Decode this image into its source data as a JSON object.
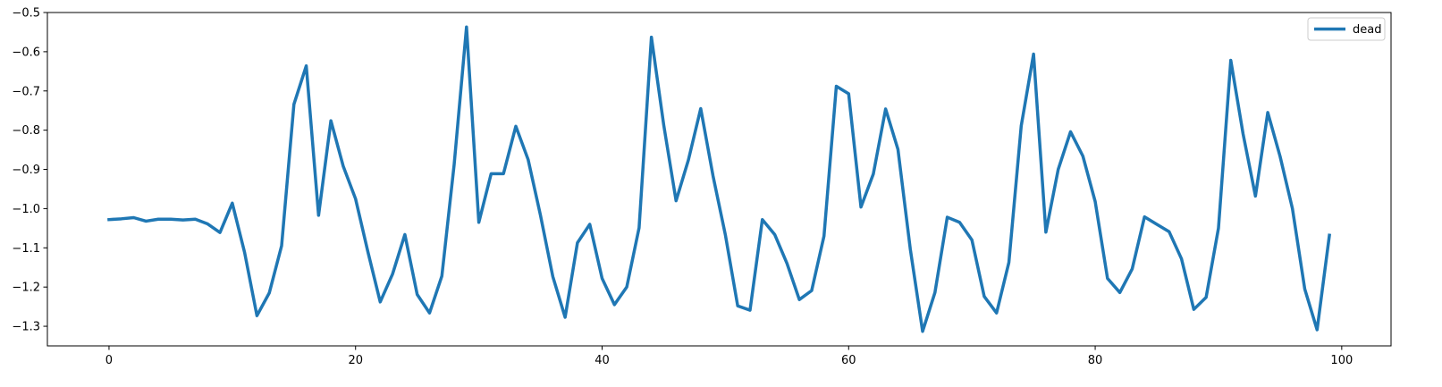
{
  "chart_data": {
    "type": "line",
    "title": "",
    "xlabel": "",
    "ylabel": "",
    "xlim": [
      -5,
      104
    ],
    "ylim": [
      -1.35,
      -0.5
    ],
    "xticks": [
      0,
      20,
      40,
      60,
      80,
      100
    ],
    "yticks": [
      -1.3,
      -1.2,
      -1.1,
      -1.0,
      -0.9,
      -0.8,
      -0.7,
      -0.6,
      -0.5
    ],
    "xtick_labels": [
      "0",
      "20",
      "40",
      "60",
      "80",
      "100"
    ],
    "ytick_labels": [
      "−1.3",
      "−1.2",
      "−1.1",
      "−1.0",
      "−0.9",
      "−0.8",
      "−0.7",
      "−0.6",
      "−0.5"
    ],
    "grid": false,
    "legend_position": "top-right",
    "series": [
      {
        "name": "dead",
        "color": "#1f77b4",
        "x": [
          0,
          1,
          2,
          3,
          4,
          5,
          6,
          7,
          8,
          9,
          10,
          11,
          12,
          13,
          14,
          15,
          16,
          17,
          18,
          19,
          20,
          21,
          22,
          23,
          24,
          25,
          26,
          27,
          28,
          29,
          30,
          31,
          32,
          33,
          34,
          35,
          36,
          37,
          38,
          39,
          40,
          41,
          42,
          43,
          44,
          45,
          46,
          47,
          48,
          49,
          50,
          51,
          52,
          53,
          54,
          55,
          56,
          57,
          58,
          59,
          60,
          61,
          62,
          63,
          64,
          65,
          66,
          67,
          68,
          69,
          70,
          71,
          72,
          73,
          74,
          75,
          76,
          77,
          78,
          79,
          80,
          81,
          82,
          83,
          84,
          85,
          86,
          87,
          88,
          89,
          90,
          91,
          92,
          93,
          94,
          95,
          96,
          97,
          98,
          99
        ],
        "values": [
          -1.028,
          -1.026,
          -1.023,
          -1.032,
          -1.027,
          -1.027,
          -1.029,
          -1.027,
          -1.039,
          -1.061,
          -0.986,
          -1.112,
          -1.273,
          -1.215,
          -1.095,
          -0.734,
          -0.636,
          -1.017,
          -0.776,
          -0.892,
          -0.975,
          -1.11,
          -1.238,
          -1.167,
          -1.066,
          -1.219,
          -1.266,
          -1.172,
          -0.887,
          -0.537,
          -1.035,
          -0.911,
          -0.911,
          -0.79,
          -0.875,
          -1.017,
          -1.173,
          -1.277,
          -1.087,
          -1.04,
          -1.178,
          -1.245,
          -1.2,
          -1.049,
          -0.563,
          -0.787,
          -0.98,
          -0.876,
          -0.745,
          -0.917,
          -1.067,
          -1.248,
          -1.259,
          -1.028,
          -1.066,
          -1.14,
          -1.232,
          -1.209,
          -1.07,
          -0.688,
          -0.707,
          -0.996,
          -0.912,
          -0.746,
          -0.849,
          -1.103,
          -1.313,
          -1.214,
          -1.022,
          -1.035,
          -1.08,
          -1.224,
          -1.266,
          -1.137,
          -0.789,
          -0.606,
          -1.06,
          -0.9,
          -0.804,
          -0.866,
          -0.982,
          -1.178,
          -1.214,
          -1.154,
          -1.021,
          -1.04,
          -1.059,
          -1.128,
          -1.257,
          -1.226,
          -1.05,
          -0.622,
          -0.81,
          -0.968,
          -0.755,
          -0.867,
          -1.0,
          -1.205,
          -1.309,
          -1.068
        ]
      }
    ]
  }
}
